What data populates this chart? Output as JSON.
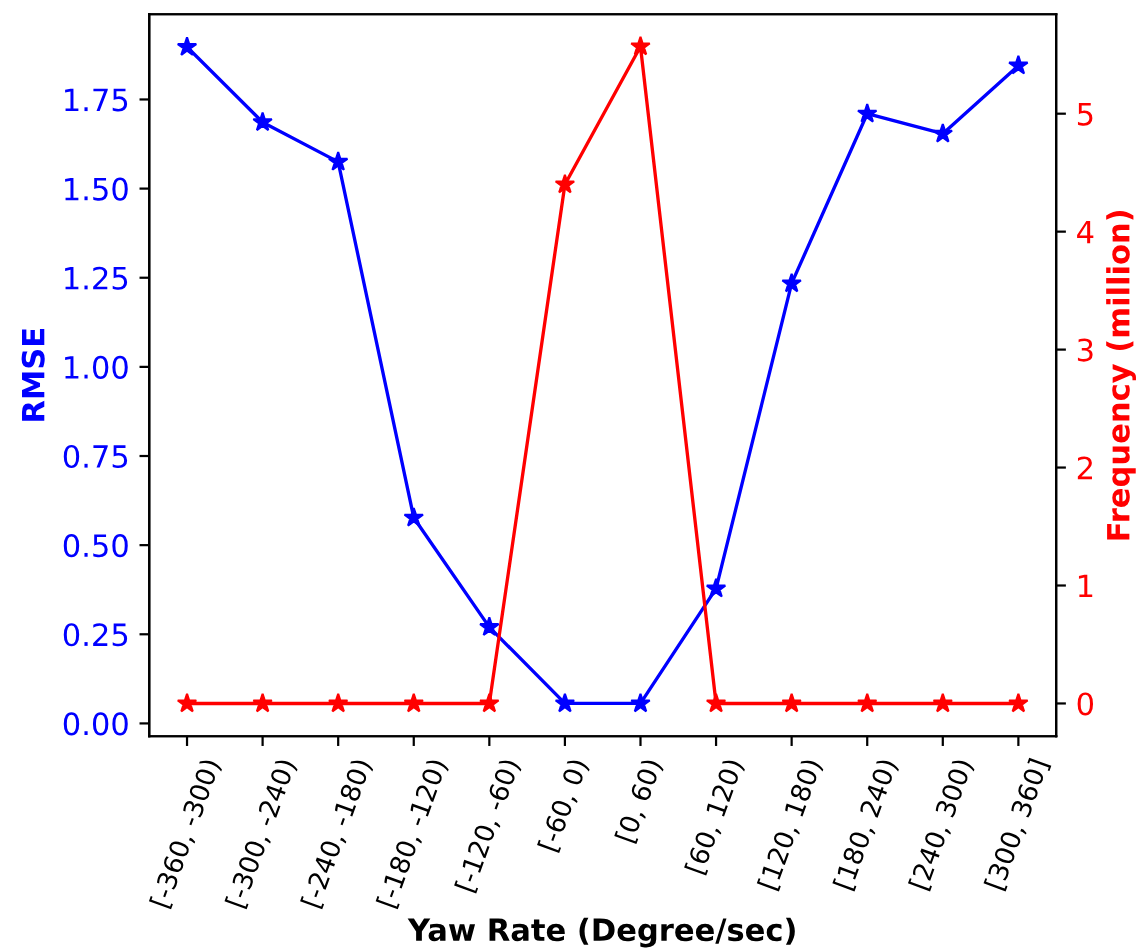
{
  "chart_data": {
    "type": "line",
    "xlabel": "Yaw Rate (Degree/sec)",
    "ylabel": "RMSE",
    "y2label": "Frequency (million)",
    "categories": [
      "[-360, -300)",
      "[-300, -240)",
      "[-240, -180)",
      "[-180, -120)",
      "[-120, -60)",
      "[-60, 0)",
      "[0, 60)",
      "[60, 120)",
      "[120, 180)",
      "[180, 240)",
      "[240, 300)",
      "[300, 360]"
    ],
    "series": [
      {
        "color": "#0000ff",
        "values": [
          1.897,
          1.686,
          1.575,
          0.577,
          0.27,
          0.056,
          0.056,
          0.378,
          1.234,
          1.71,
          1.654,
          1.845
        ]
      },
      {
        "color": "#ff0000",
        "axis": "y2",
        "values": [
          0,
          0,
          0,
          0,
          0,
          4.4,
          5.57,
          0,
          0,
          0,
          0,
          0
        ]
      }
    ],
    "ylim": [
      -0.036,
      1.989
    ],
    "yticks": [
      {
        "value": 0,
        "label": "0.00"
      },
      {
        "value": 0.25,
        "label": "0.25"
      },
      {
        "value": 0.5,
        "label": "0.50"
      },
      {
        "value": 0.75,
        "label": "0.75"
      },
      {
        "value": 1,
        "label": "1.00"
      },
      {
        "value": 1.25,
        "label": "1.25"
      },
      {
        "value": 1.5,
        "label": "1.50"
      },
      {
        "value": 1.75,
        "label": "1.75"
      }
    ],
    "y2lim": [
      -0.278,
      5.843
    ],
    "y2ticks": [
      0,
      1,
      2,
      3,
      4,
      5
    ],
    "marker": "star",
    "line_style": "solid",
    "grid": false,
    "legend": false
  }
}
